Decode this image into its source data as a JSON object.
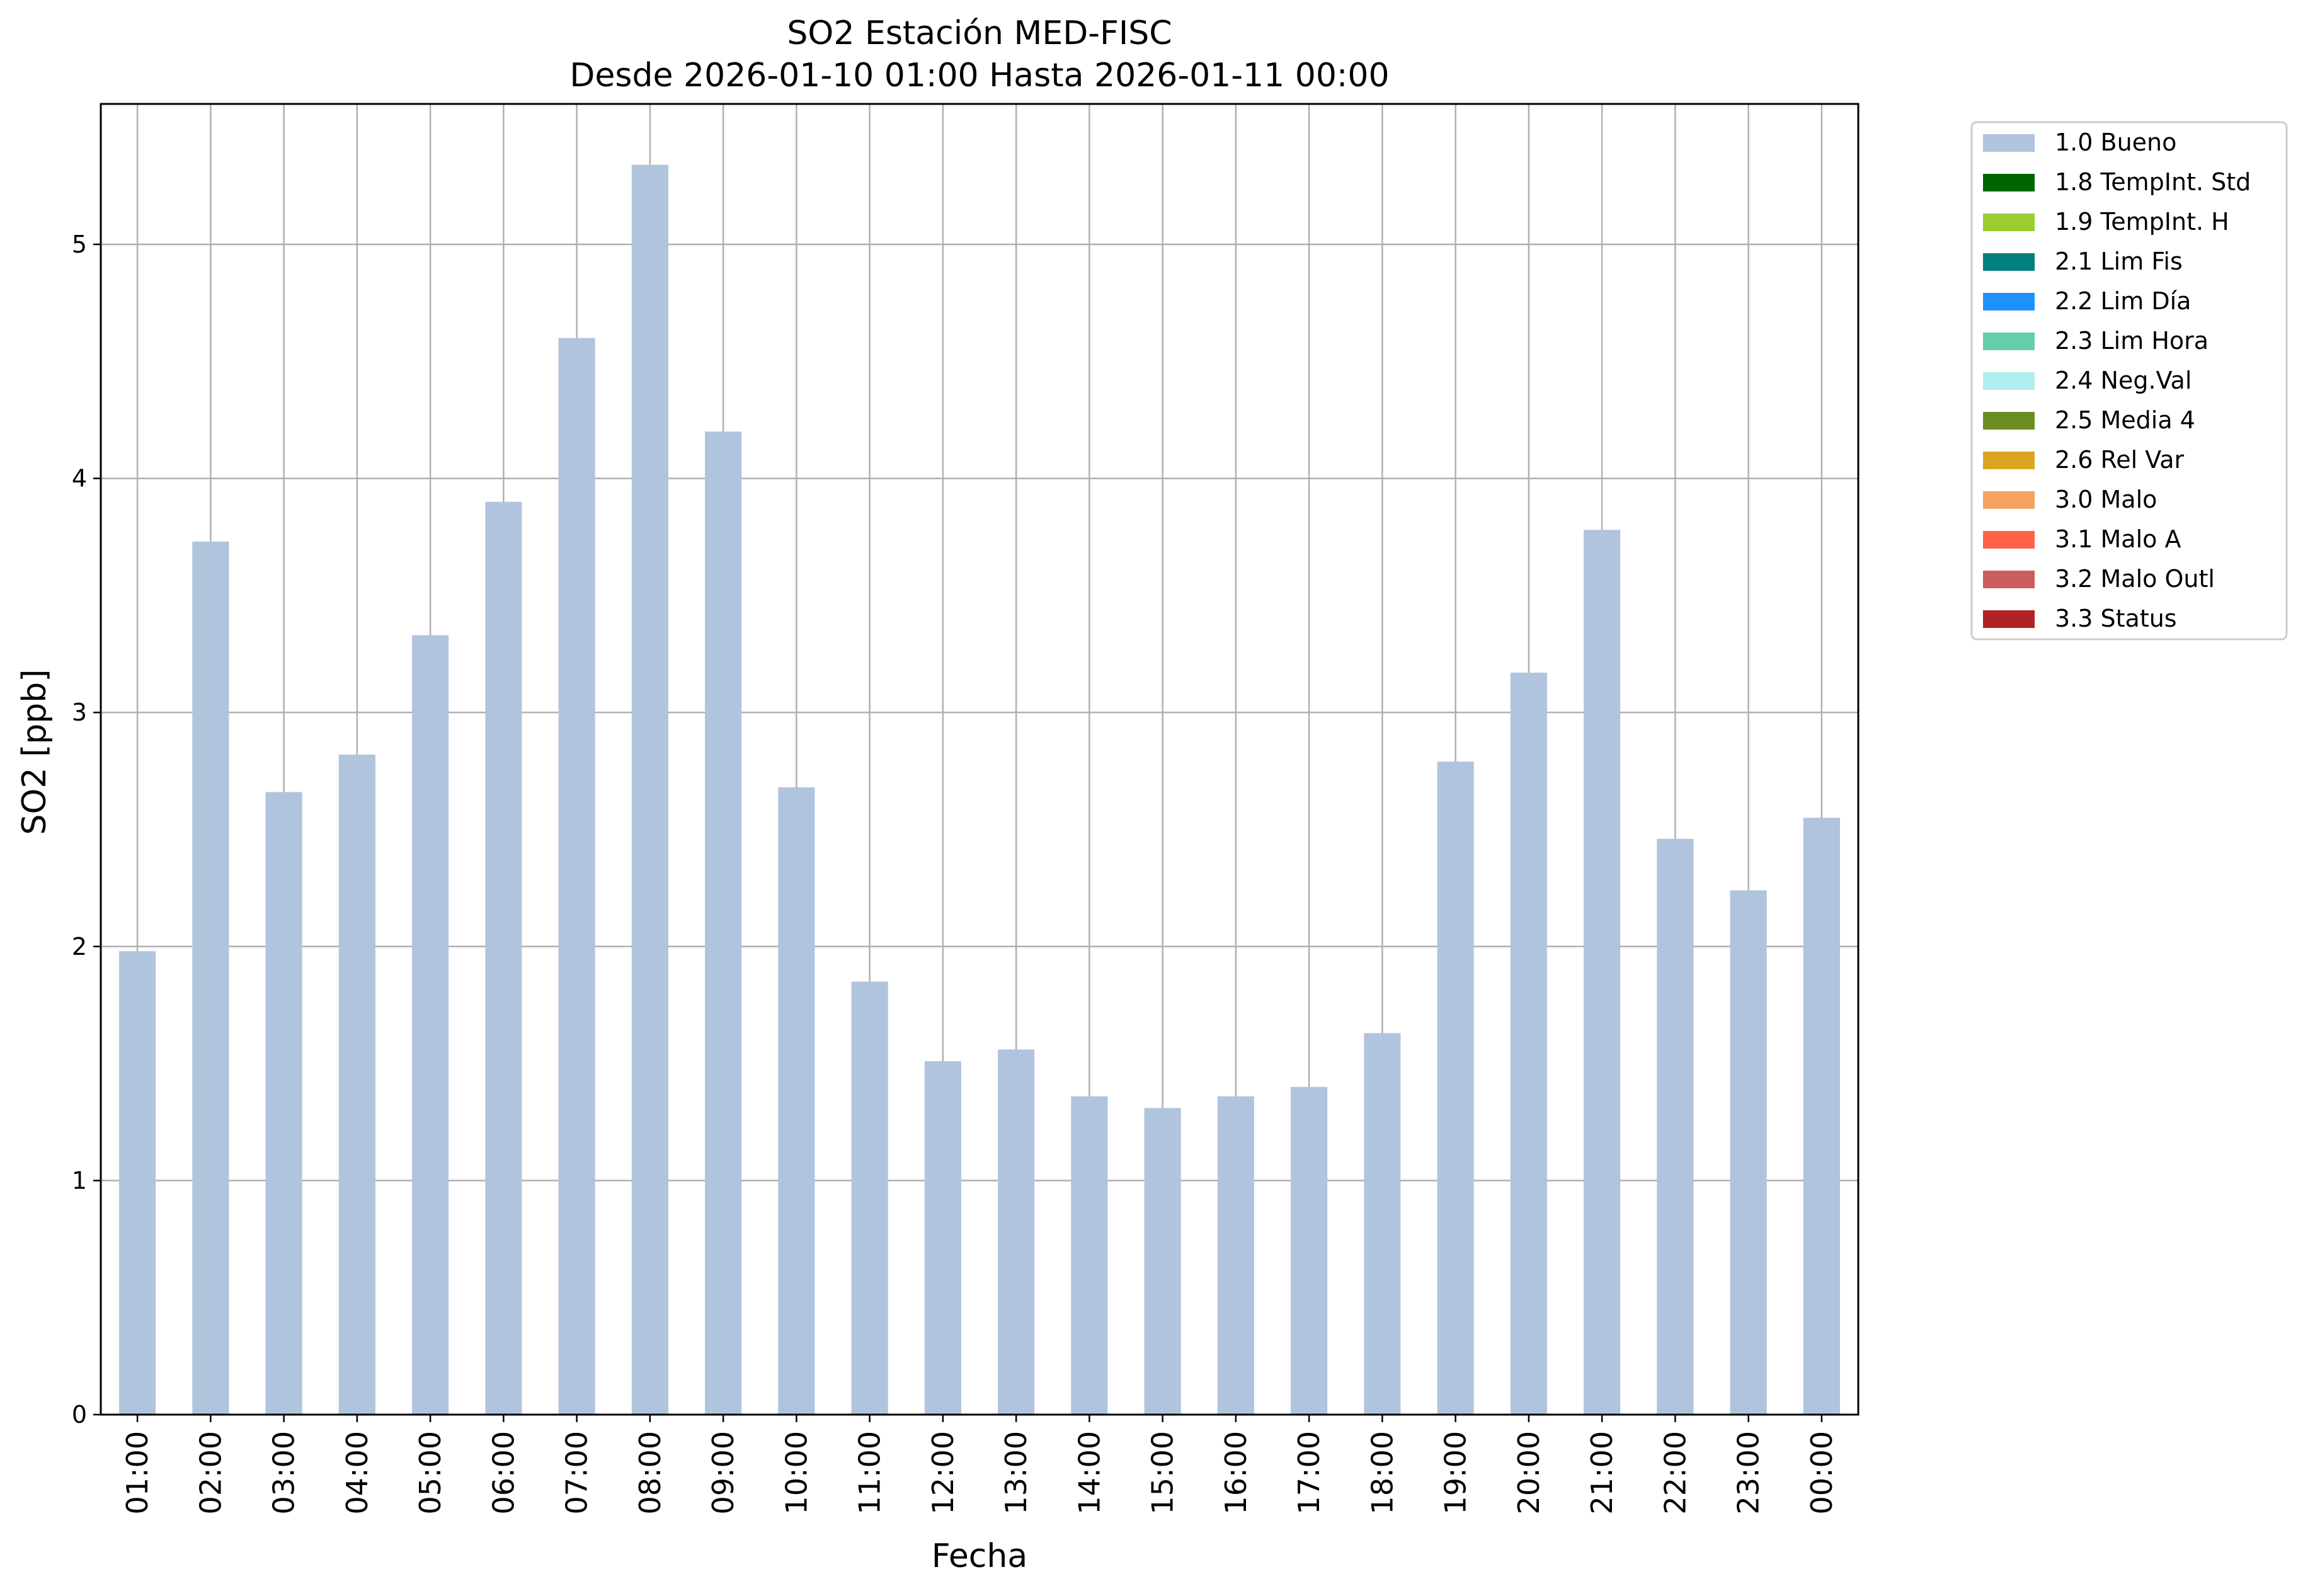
{
  "chart_data": {
    "type": "bar",
    "title": "SO2 Estación MED-FISC",
    "subtitle": "Desde 2026-01-10 01:00 Hasta 2026-01-11 00:00",
    "xlabel": "Fecha",
    "ylabel": "SO2 [ppb]",
    "ylim": [
      0,
      5.6
    ],
    "yticks": [
      "0",
      "1",
      "2",
      "3",
      "4",
      "5"
    ],
    "grid": true,
    "legend_position": "outside-top-right",
    "categories": [
      "01:00",
      "02:00",
      "03:00",
      "04:00",
      "05:00",
      "06:00",
      "07:00",
      "08:00",
      "09:00",
      "10:00",
      "11:00",
      "12:00",
      "13:00",
      "14:00",
      "15:00",
      "16:00",
      "17:00",
      "18:00",
      "19:00",
      "20:00",
      "21:00",
      "22:00",
      "23:00",
      "00:00"
    ],
    "series": [
      {
        "name": "1.0 Bueno",
        "color": "#b0c4de",
        "values": [
          1.98,
          3.73,
          2.66,
          2.82,
          3.33,
          3.9,
          4.6,
          5.34,
          4.2,
          2.68,
          1.85,
          1.51,
          1.56,
          1.36,
          1.31,
          1.36,
          1.4,
          1.63,
          2.79,
          3.17,
          3.78,
          2.46,
          2.24,
          2.55
        ]
      }
    ],
    "legend": [
      {
        "label": "1.0 Bueno",
        "color": "#b0c4de"
      },
      {
        "label": "1.8 TempInt. Std",
        "color": "#006400"
      },
      {
        "label": "1.9 TempInt. H",
        "color": "#9acd32"
      },
      {
        "label": "2.1 Lim Fis",
        "color": "#008080"
      },
      {
        "label": "2.2 Lim Día",
        "color": "#1e90ff"
      },
      {
        "label": "2.3 Lim Hora",
        "color": "#66cdaa"
      },
      {
        "label": "2.4 Neg.Val",
        "color": "#afeeee"
      },
      {
        "label": "2.5 Media 4",
        "color": "#6b8e23"
      },
      {
        "label": "2.6 Rel Var",
        "color": "#daa520"
      },
      {
        "label": "3.0 Malo",
        "color": "#f4a460"
      },
      {
        "label": "3.1 Malo A",
        "color": "#ff6347"
      },
      {
        "label": "3.2 Malo Outl",
        "color": "#cd5c5c"
      },
      {
        "label": "3.3 Status",
        "color": "#b22222"
      }
    ]
  }
}
